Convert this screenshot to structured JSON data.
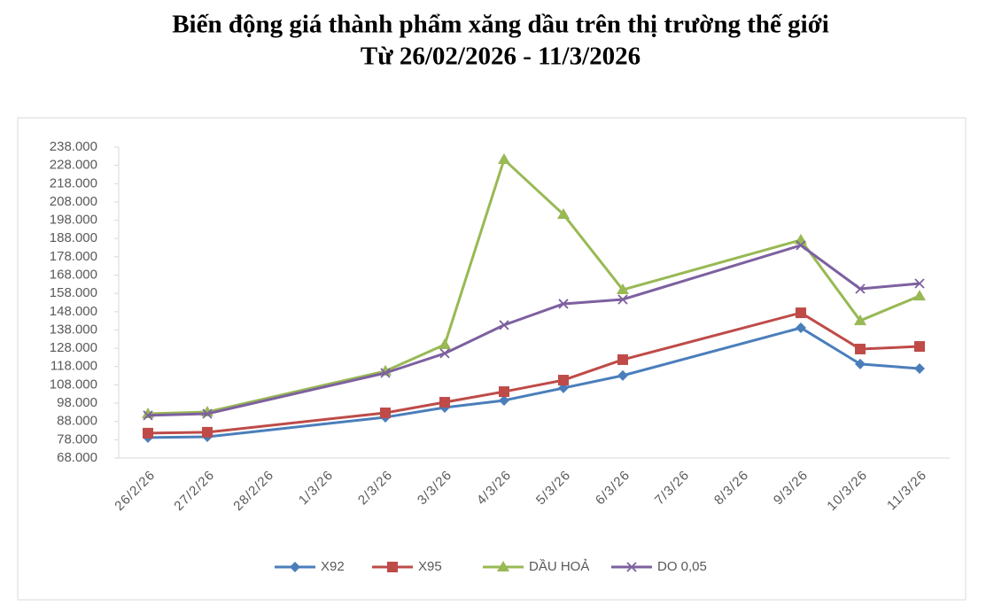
{
  "chart_data": {
    "type": "line",
    "title": "Biến động giá thành phẩm xăng dầu trên thị trường thế giới",
    "subtitle": "Từ 26/02/2026 - 11/3/2026",
    "categories": [
      "26/2/26",
      "27/2/26",
      "28/2/26",
      "1/3/26",
      "2/3/26",
      "3/3/26",
      "4/3/26",
      "5/3/26",
      "6/3/26",
      "7/3/26",
      "8/3/26",
      "9/3/26",
      "10/3/26",
      "11/3/26"
    ],
    "series": [
      {
        "name": "X92",
        "color": "#4a7ebb",
        "marker": "diamond",
        "values": [
          79200,
          79600,
          null,
          null,
          90300,
          95600,
          99500,
          106300,
          113100,
          null,
          null,
          139200,
          119400,
          116900
        ]
      },
      {
        "name": "X95",
        "color": "#be4b48",
        "marker": "square",
        "values": [
          81600,
          82100,
          null,
          null,
          92700,
          98500,
          104300,
          110600,
          121800,
          null,
          null,
          147400,
          127600,
          129000
        ]
      },
      {
        "name": "DẦU HOẢ",
        "color": "#98b954",
        "marker": "triangle",
        "values": [
          92200,
          93200,
          null,
          null,
          115500,
          130000,
          231200,
          201200,
          160000,
          null,
          null,
          187200,
          143100,
          156600
        ]
      },
      {
        "name": "DO 0,05",
        "color": "#7d60a0",
        "marker": "x",
        "values": [
          91300,
          92200,
          null,
          null,
          114500,
          125200,
          140700,
          152300,
          154700,
          null,
          null,
          184300,
          160500,
          163400
        ]
      }
    ],
    "ylim": [
      68000,
      238000
    ],
    "yticks": [
      {
        "value": 68000,
        "label": "68.000"
      },
      {
        "value": 78000,
        "label": "78.000"
      },
      {
        "value": 88000,
        "label": "88.000"
      },
      {
        "value": 98000,
        "label": "98.000"
      },
      {
        "value": 108000,
        "label": "108.000"
      },
      {
        "value": 118000,
        "label": "118.000"
      },
      {
        "value": 128000,
        "label": "128.000"
      },
      {
        "value": 138000,
        "label": "138.000"
      },
      {
        "value": 148000,
        "label": "148.000"
      },
      {
        "value": 158000,
        "label": "158.000"
      },
      {
        "value": 168000,
        "label": "168.000"
      },
      {
        "value": 178000,
        "label": "178.000"
      },
      {
        "value": 188000,
        "label": "188.000"
      },
      {
        "value": 198000,
        "label": "198.000"
      },
      {
        "value": 208000,
        "label": "208.000"
      },
      {
        "value": 218000,
        "label": "218.000"
      },
      {
        "value": 228000,
        "label": "228.000"
      },
      {
        "value": 238000,
        "label": "238.000"
      }
    ],
    "grid": false,
    "legend": "bottom"
  }
}
